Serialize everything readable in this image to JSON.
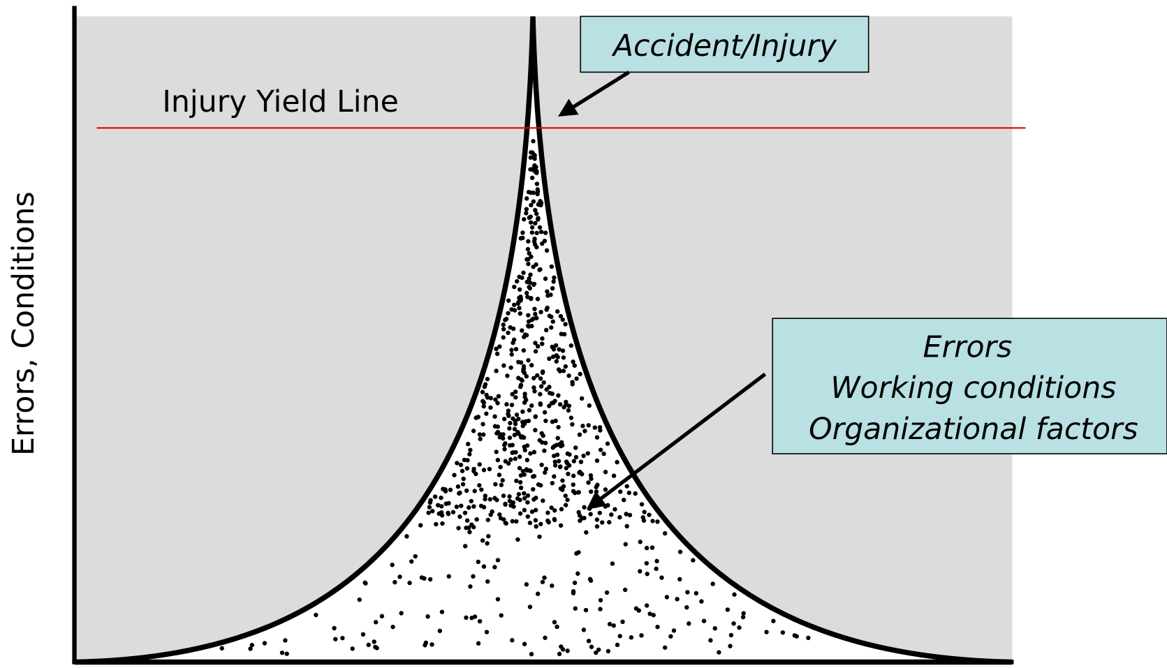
{
  "y_axis_label": "Errors, Conditions",
  "yield_line_label": "Injury Yield Line",
  "callouts": [
    {
      "lines": [
        "Accident/Injury"
      ]
    },
    {
      "lines": [
        "Errors",
        "Working conditions",
        "Organizational factors"
      ]
    }
  ]
}
